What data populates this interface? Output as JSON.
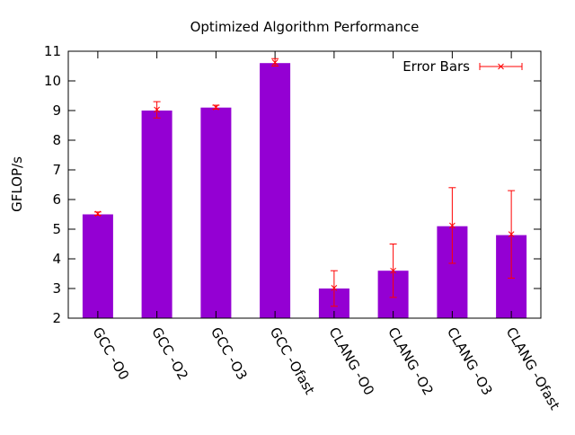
{
  "chart_data": {
    "type": "bar",
    "title": "Optimized Algorithm Performance",
    "xlabel": "",
    "ylabel": "GFLOP/s",
    "ylim": [
      2,
      11
    ],
    "yticks": [
      2,
      3,
      4,
      5,
      6,
      7,
      8,
      9,
      10,
      11
    ],
    "grid": false,
    "legend_position": "top-right",
    "categories": [
      "GCC -O0",
      "GCC -O2",
      "GCC -O3",
      "GCC -Ofast",
      "CLANG -O0",
      "CLANG -O2",
      "CLANG -O3",
      "CLANG -Ofast"
    ],
    "series": [
      {
        "values": [
          5.5,
          9.0,
          9.1,
          10.6,
          3.0,
          3.6,
          5.1,
          4.8
        ],
        "color": "#9400d3"
      }
    ],
    "error_bars": {
      "name": "Error Bars",
      "color": "#ff0000",
      "centers": [
        5.52,
        9.03,
        9.11,
        10.62,
        3.02,
        3.6,
        5.12,
        4.83
      ],
      "low": [
        5.47,
        8.75,
        9.05,
        10.5,
        2.4,
        2.7,
        3.85,
        3.35
      ],
      "high": [
        5.58,
        9.3,
        9.18,
        10.75,
        3.6,
        4.5,
        6.4,
        6.3
      ]
    }
  }
}
